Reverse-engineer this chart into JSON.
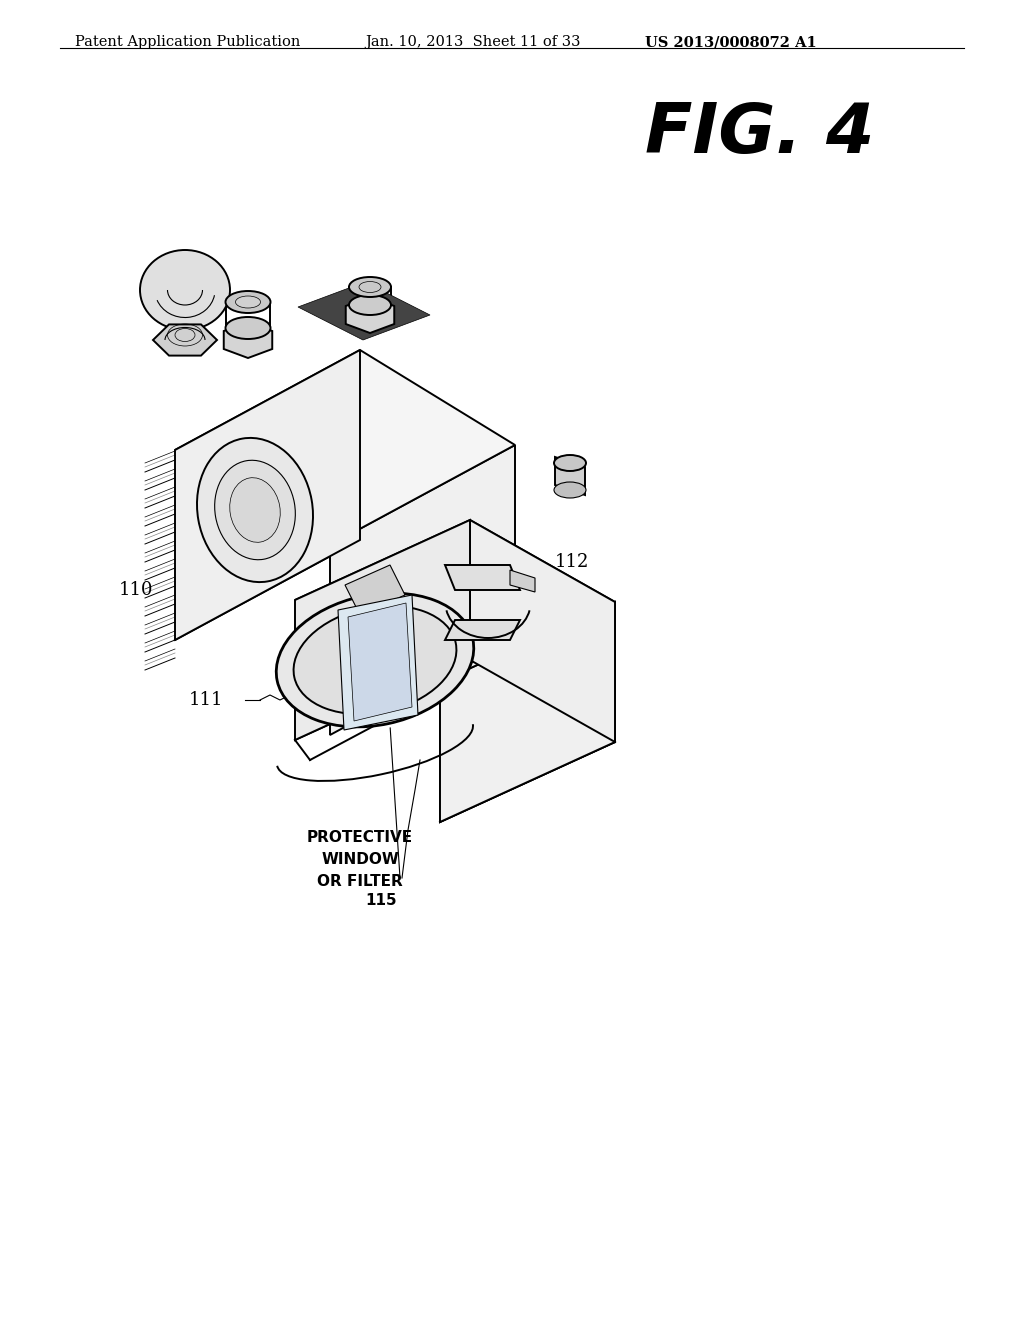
{
  "bg_color": "#ffffff",
  "header_left": "Patent Application Publication",
  "header_center": "Jan. 10, 2013  Sheet 11 of 33",
  "header_right": "US 2013/0008072 A1",
  "fig_label": "FIG. 4",
  "header_fontsize": 10.5,
  "fig_label_fontsize": 50,
  "label_fontsize": 13,
  "label_110": "110",
  "label_111": "111",
  "label_112": "112",
  "label_115_line1": "PROTECTIVE",
  "label_115_line2": "WINDOW",
  "label_115_line3": "OR FILTER",
  "label_115_num": "115",
  "lw_heavy": 2.0,
  "lw_medium": 1.4,
  "lw_light": 0.8,
  "lw_thin": 0.5
}
